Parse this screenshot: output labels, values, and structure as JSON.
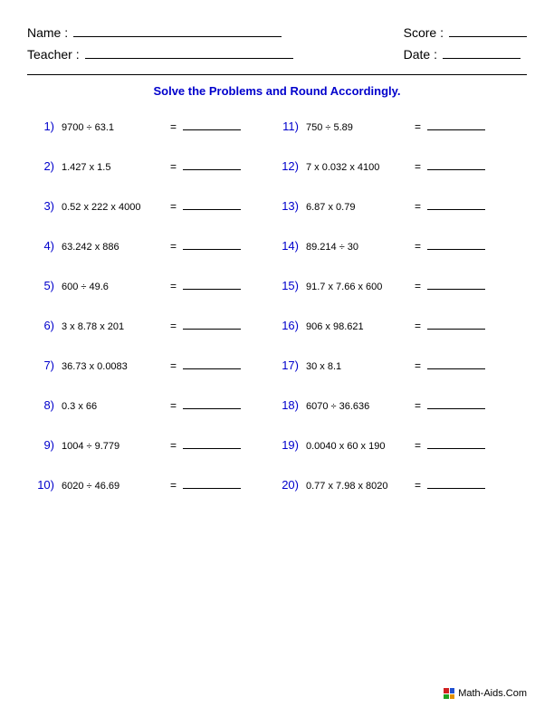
{
  "header": {
    "name_label": "Name :",
    "teacher_label": "Teacher :",
    "score_label": "Score :",
    "date_label": "Date :"
  },
  "instruction": "Solve the Problems and Round Accordingly.",
  "colors": {
    "accent": "#0000cc",
    "text": "#000000",
    "background": "#ffffff"
  },
  "problems_left": [
    {
      "n": "1)",
      "expr": "9700 ÷ 63.1"
    },
    {
      "n": "2)",
      "expr": "1.427 x 1.5"
    },
    {
      "n": "3)",
      "expr": "0.52 x 222 x 4000"
    },
    {
      "n": "4)",
      "expr": "63.242 x 886"
    },
    {
      "n": "5)",
      "expr": "600 ÷ 49.6"
    },
    {
      "n": "6)",
      "expr": "3 x 8.78 x 201"
    },
    {
      "n": "7)",
      "expr": "36.73 x 0.0083"
    },
    {
      "n": "8)",
      "expr": "0.3 x 66"
    },
    {
      "n": "9)",
      "expr": "1004 ÷ 9.779"
    },
    {
      "n": "10)",
      "expr": "6020 ÷ 46.69"
    }
  ],
  "problems_right": [
    {
      "n": "11)",
      "expr": "750 ÷ 5.89"
    },
    {
      "n": "12)",
      "expr": "7 x 0.032 x 4100"
    },
    {
      "n": "13)",
      "expr": "6.87 x 0.79"
    },
    {
      "n": "14)",
      "expr": "89.214 ÷ 30"
    },
    {
      "n": "15)",
      "expr": "91.7 x 7.66 x 600"
    },
    {
      "n": "16)",
      "expr": "906 x 98.621"
    },
    {
      "n": "17)",
      "expr": "30 x 8.1"
    },
    {
      "n": "18)",
      "expr": "6070 ÷ 36.636"
    },
    {
      "n": "19)",
      "expr": "0.0040 x 60 x 190"
    },
    {
      "n": "20)",
      "expr": "0.77 x 7.98 x 8020"
    }
  ],
  "equals": "=",
  "footer": {
    "text": "Math-Aids.Com",
    "icon_colors": [
      "#d02020",
      "#2050d0",
      "#20a020",
      "#e09000"
    ]
  }
}
